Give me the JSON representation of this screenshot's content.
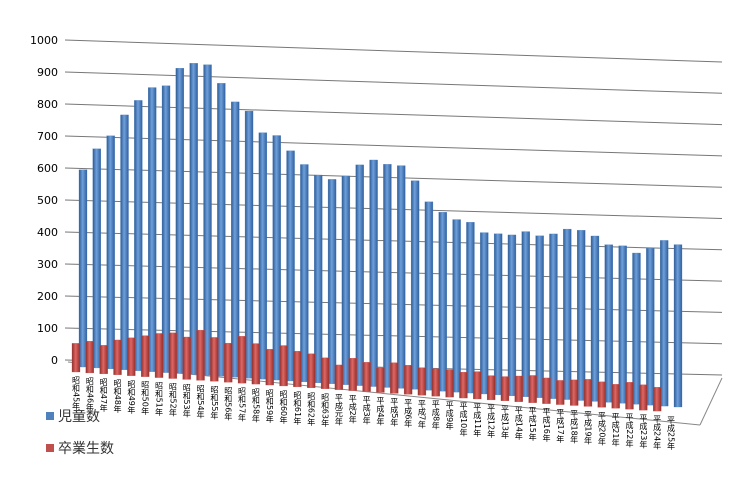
{
  "chart_data": {
    "type": "bar3d",
    "categories": [
      "昭和45年",
      "昭和46年",
      "昭和47年",
      "昭和48年",
      "昭和49年",
      "昭和50年",
      "昭和51年",
      "昭和52年",
      "昭和53年",
      "昭和54年",
      "昭和55年",
      "昭和56年",
      "昭和57年",
      "昭和58年",
      "昭和59年",
      "昭和60年",
      "昭和61年",
      "昭和62年",
      "昭和63年",
      "平成元年",
      "平成2年",
      "平成3年",
      "平成4年",
      "平成5年",
      "平成6年",
      "平成7年",
      "平成8年",
      "平成9年",
      "平成10年",
      "平成11年",
      "平成12年",
      "平成13年",
      "平成14年",
      "平成15年",
      "平成16年",
      "平成17年",
      "平成18年",
      "平成19年",
      "平成20年",
      "平成21年",
      "平成22年",
      "平成23年",
      "平成24年",
      "平成25年"
    ],
    "series": [
      {
        "name": "児童数",
        "color": "#4f81bd",
        "values": [
          620,
          690,
          735,
          805,
          855,
          900,
          910,
          970,
          990,
          990,
          935,
          880,
          855,
          790,
          785,
          740,
          700,
          670,
          660,
          675,
          715,
          735,
          725,
          725,
          680,
          615,
          585,
          565,
          560,
          530,
          530,
          530,
          545,
          535,
          545,
          565,
          565,
          550,
          525,
          525,
          505,
          525,
          555,
          545
        ]
      },
      {
        "name": "卒業生数",
        "color": "#c0504d",
        "values": [
          90,
          100,
          90,
          110,
          120,
          130,
          140,
          145,
          135,
          160,
          140,
          125,
          150,
          130,
          115,
          130,
          115,
          110,
          100,
          80,
          105,
          95,
          80,
          100,
          95,
          90,
          90,
          90,
          85,
          90,
          80,
          80,
          85,
          90,
          85,
          80,
          85,
          90,
          85,
          80,
          90,
          85,
          80,
          null
        ]
      }
    ],
    "ylim": [
      0,
      1000
    ],
    "yticks": [
      0,
      100,
      200,
      300,
      400,
      500,
      600,
      700,
      800,
      900,
      1000
    ],
    "grid": true,
    "legend": "bottom-left"
  }
}
